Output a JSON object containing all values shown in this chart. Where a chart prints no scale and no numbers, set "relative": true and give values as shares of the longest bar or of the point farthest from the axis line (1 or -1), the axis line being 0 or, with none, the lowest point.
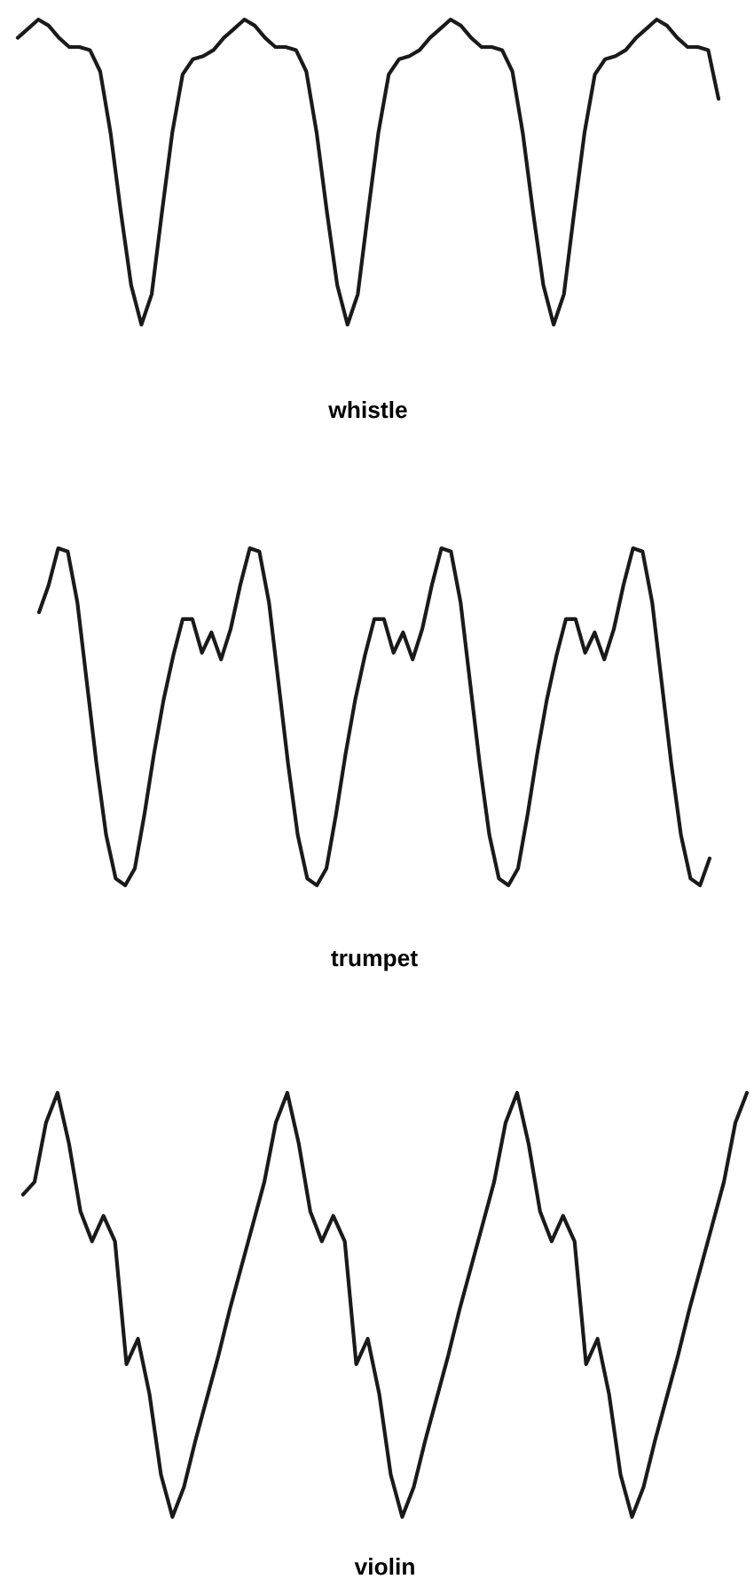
{
  "chart_data": [
    {
      "type": "line",
      "relative": true,
      "xlabel": "whistle",
      "categories": [
        null,
        null,
        null,
        null,
        null,
        null,
        null,
        null,
        null,
        null,
        null,
        null,
        null,
        null,
        null,
        null,
        null,
        null,
        null,
        null,
        null,
        null,
        null,
        null,
        null,
        null,
        null,
        null,
        null,
        null,
        null,
        null,
        null,
        null,
        null,
        null,
        null,
        null,
        null,
        null,
        null,
        null,
        null,
        null,
        null,
        null,
        null,
        null,
        null,
        null,
        null,
        null,
        null,
        null,
        null,
        null,
        null,
        null,
        null,
        null,
        null,
        null,
        null,
        null,
        null,
        null,
        null,
        null,
        null
      ],
      "series": [
        {
          "color": "#1a1a1a",
          "values": [
            0.94,
            0.97,
            1,
            0.98,
            0.94,
            0.91,
            0.91,
            0.9,
            0.83,
            0.63,
            0.37,
            0.13,
            0,
            0.1,
            0.37,
            0.63,
            0.82,
            0.87,
            0.88,
            0.9,
            0.94,
            0.97,
            1,
            0.98,
            0.94,
            0.91,
            0.91,
            0.9,
            0.83,
            0.63,
            0.37,
            0.13,
            0,
            0.1,
            0.37,
            0.63,
            0.82,
            0.87,
            0.88,
            0.9,
            0.94,
            0.97,
            1,
            0.98,
            0.94,
            0.91,
            0.91,
            0.9,
            0.83,
            0.63,
            0.37,
            0.13,
            0,
            0.1,
            0.37,
            0.63,
            0.82,
            0.87,
            0.88,
            0.9,
            0.94,
            0.97,
            1,
            0.98,
            0.94,
            0.91,
            0.91,
            0.9,
            0.74
          ]
        }
      ]
    },
    {
      "type": "line",
      "relative": true,
      "xlabel": "trumpet",
      "categories": [
        null,
        null,
        null,
        null,
        null,
        null,
        null,
        null,
        null,
        null,
        null,
        null,
        null,
        null,
        null,
        null,
        null,
        null,
        null,
        null,
        null,
        null,
        null,
        null,
        null,
        null,
        null,
        null,
        null,
        null,
        null,
        null,
        null,
        null,
        null,
        null,
        null,
        null,
        null,
        null,
        null,
        null,
        null,
        null,
        null,
        null,
        null,
        null,
        null,
        null,
        null,
        null,
        null,
        null,
        null,
        null,
        null,
        null,
        null,
        null,
        null,
        null,
        null,
        null,
        null,
        null,
        null,
        null,
        null,
        null,
        null
      ],
      "series": [
        {
          "color": "#1a1a1a",
          "values": [
            0.81,
            0.89,
            1,
            0.99,
            0.84,
            0.6,
            0.36,
            0.15,
            0.02,
            0,
            0.05,
            0.21,
            0.39,
            0.55,
            0.68,
            0.79,
            0.79,
            0.69,
            0.75,
            0.67,
            0.76,
            0.89,
            1,
            0.99,
            0.84,
            0.6,
            0.36,
            0.15,
            0.02,
            0,
            0.05,
            0.21,
            0.39,
            0.55,
            0.68,
            0.79,
            0.79,
            0.69,
            0.75,
            0.67,
            0.76,
            0.89,
            1,
            0.99,
            0.84,
            0.6,
            0.36,
            0.15,
            0.02,
            0,
            0.05,
            0.21,
            0.39,
            0.55,
            0.68,
            0.79,
            0.79,
            0.69,
            0.75,
            0.67,
            0.76,
            0.89,
            1,
            0.99,
            0.84,
            0.6,
            0.36,
            0.15,
            0.02,
            0,
            0.08
          ]
        }
      ]
    },
    {
      "type": "line",
      "relative": true,
      "xlabel": "violin",
      "categories": [
        null,
        null,
        null,
        null,
        null,
        null,
        null,
        null,
        null,
        null,
        null,
        null,
        null,
        null,
        null,
        null,
        null,
        null,
        null,
        null,
        null,
        null,
        null,
        null,
        null,
        null,
        null,
        null,
        null,
        null,
        null,
        null,
        null,
        null,
        null,
        null,
        null,
        null,
        null,
        null,
        null,
        null,
        null,
        null,
        null,
        null,
        null,
        null,
        null,
        null,
        null,
        null,
        null,
        null,
        null,
        null,
        null,
        null,
        null,
        null,
        null,
        null,
        null,
        null
      ],
      "series": [
        {
          "color": "#1a1a1a",
          "values": [
            0.76,
            0.79,
            0.93,
            1,
            0.88,
            0.72,
            0.65,
            0.71,
            0.65,
            0.36,
            0.42,
            0.29,
            0.1,
            0,
            0.07,
            0.18,
            0.28,
            0.38,
            0.49,
            0.59,
            0.69,
            0.79,
            0.93,
            1,
            0.88,
            0.72,
            0.65,
            0.71,
            0.65,
            0.36,
            0.42,
            0.29,
            0.1,
            0,
            0.07,
            0.18,
            0.28,
            0.38,
            0.49,
            0.59,
            0.69,
            0.79,
            0.93,
            1,
            0.88,
            0.72,
            0.65,
            0.71,
            0.65,
            0.36,
            0.42,
            0.29,
            0.1,
            0,
            0.07,
            0.18,
            0.28,
            0.38,
            0.49,
            0.59,
            0.69,
            0.79,
            0.93,
            1
          ]
        }
      ]
    }
  ]
}
